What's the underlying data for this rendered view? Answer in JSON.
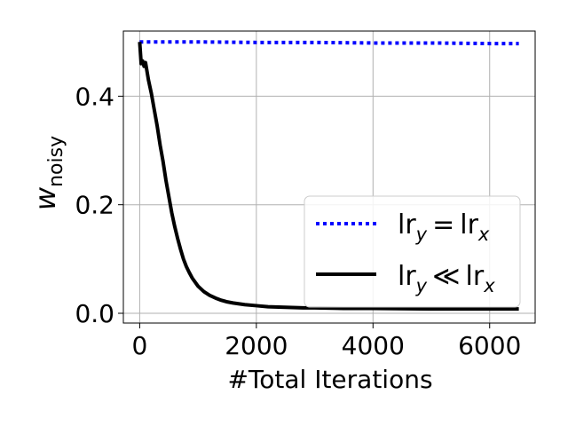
{
  "chart_data": {
    "type": "line",
    "xlabel": "#Total Iterations",
    "ylabel": "w",
    "ylabel_subscript": "noisy",
    "xlim": [
      -280,
      6780
    ],
    "ylim": [
      -0.018,
      0.52
    ],
    "xticks": [
      0,
      2000,
      4000,
      6000
    ],
    "xtick_labels": [
      "0",
      "2000",
      "4000",
      "6000"
    ],
    "yticks": [
      0.0,
      0.2,
      0.4
    ],
    "ytick_labels": [
      "0.0",
      "0.2",
      "0.4"
    ],
    "grid": true,
    "legend_position": "lower-right",
    "series": [
      {
        "name": "lr_y = lr_x",
        "legend_main_left": "lr",
        "legend_sub_left": "y",
        "legend_operator": "=",
        "legend_main_right": "lr",
        "legend_sub_right": "x",
        "color": "#0000ff",
        "style": "dotted",
        "x": [
          0,
          1000,
          2000,
          3000,
          4000,
          5000,
          6000,
          6500
        ],
        "y": [
          0.5,
          0.5,
          0.499,
          0.499,
          0.498,
          0.498,
          0.497,
          0.497
        ]
      },
      {
        "name": "lr_y << lr_x",
        "legend_main_left": "lr",
        "legend_sub_left": "y",
        "legend_operator": "≪",
        "legend_main_right": "lr",
        "legend_sub_right": "x",
        "color": "#000000",
        "style": "solid",
        "x": [
          0,
          25,
          50,
          75,
          100,
          150,
          200,
          250,
          300,
          350,
          400,
          450,
          500,
          550,
          600,
          650,
          700,
          750,
          800,
          850,
          900,
          1000,
          1100,
          1200,
          1300,
          1400,
          1500,
          1600,
          1800,
          2000,
          2200,
          2500,
          2800,
          3000,
          3500,
          4000,
          5000,
          6000,
          6500
        ],
        "y": [
          0.5,
          0.46,
          0.465,
          0.455,
          0.462,
          0.43,
          0.405,
          0.375,
          0.345,
          0.31,
          0.28,
          0.245,
          0.215,
          0.185,
          0.16,
          0.138,
          0.118,
          0.1,
          0.086,
          0.075,
          0.065,
          0.05,
          0.04,
          0.033,
          0.028,
          0.024,
          0.021,
          0.019,
          0.016,
          0.014,
          0.012,
          0.011,
          0.01,
          0.01,
          0.009,
          0.009,
          0.008,
          0.008,
          0.008
        ]
      }
    ]
  }
}
